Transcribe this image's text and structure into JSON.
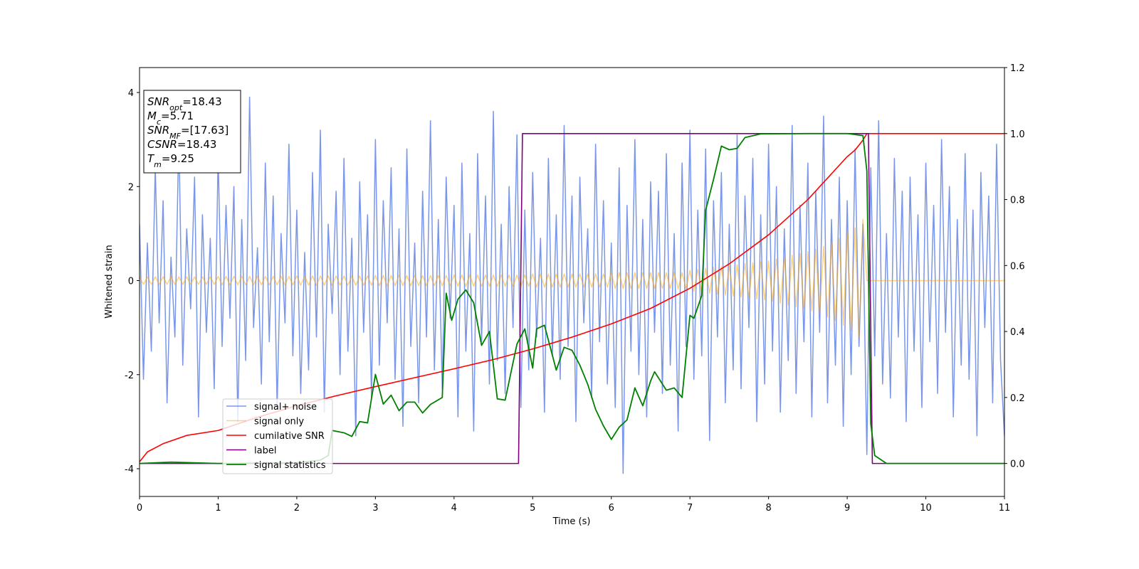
{
  "chart_data": {
    "type": "line",
    "xlabel": "Time (s)",
    "ylabel": "Whitened strain",
    "xlim": [
      0,
      11
    ],
    "ylim": [
      -4.59,
      4.53
    ],
    "y2lim": [
      -0.1,
      1.2
    ],
    "xticks": [
      0,
      1,
      2,
      3,
      4,
      5,
      6,
      7,
      8,
      9,
      10,
      11
    ],
    "yticks": [
      -4,
      -2,
      0,
      2,
      4
    ],
    "y2ticks": [
      {
        "value": 0,
        "label": "0.0"
      },
      0.2,
      0.4,
      0.6,
      0.8,
      {
        "value": 1,
        "label": "1.0"
      },
      1.2
    ],
    "legend": "lower left",
    "annotations": [
      {
        "symbol": "SNR",
        "subscript": "opt",
        "text": "=18.43"
      },
      {
        "symbol": "M",
        "subscript": "c",
        "text": "=5.71"
      },
      {
        "symbol": "SNR",
        "subscript": "MF",
        "text": "=[17.63]"
      },
      {
        "symbol": "CSNR",
        "text": "=18.43"
      },
      {
        "symbol": "T",
        "subscript": "m",
        "text": "=9.25"
      }
    ],
    "x": [
      0,
      0.05,
      0.1,
      0.15,
      0.2,
      0.25,
      0.3,
      0.35,
      0.4,
      0.45,
      0.5,
      0.55,
      0.6,
      0.65,
      0.7,
      0.75,
      0.8,
      0.85,
      0.9,
      0.95,
      1,
      1.05,
      1.1,
      1.15,
      1.2,
      1.25,
      1.3,
      1.35,
      1.4,
      1.45,
      1.5,
      1.55,
      1.6,
      1.65,
      1.7,
      1.75,
      1.8,
      1.85,
      1.9,
      1.95,
      2,
      2.05,
      2.1,
      2.15,
      2.2,
      2.25,
      2.3,
      2.35,
      2.4,
      2.45,
      2.5,
      2.55,
      2.6,
      2.65,
      2.7,
      2.75,
      2.8,
      2.85,
      2.9,
      2.95,
      3,
      3.05,
      3.1,
      3.15,
      3.2,
      3.25,
      3.3,
      3.35,
      3.4,
      3.45,
      3.5,
      3.55,
      3.6,
      3.65,
      3.7,
      3.75,
      3.8,
      3.85,
      3.9,
      3.95,
      4,
      4.05,
      4.1,
      4.15,
      4.2,
      4.25,
      4.3,
      4.35,
      4.4,
      4.45,
      4.5,
      4.55,
      4.6,
      4.65,
      4.7,
      4.75,
      4.8,
      4.85,
      4.9,
      4.95,
      5,
      5.05,
      5.1,
      5.15,
      5.2,
      5.25,
      5.3,
      5.35,
      5.4,
      5.45,
      5.5,
      5.55,
      5.6,
      5.65,
      5.7,
      5.75,
      5.8,
      5.85,
      5.9,
      5.95,
      6,
      6.05,
      6.1,
      6.15,
      6.2,
      6.25,
      6.3,
      6.35,
      6.4,
      6.45,
      6.5,
      6.55,
      6.6,
      6.65,
      6.7,
      6.75,
      6.8,
      6.85,
      6.9,
      6.95,
      7,
      7.05,
      7.1,
      7.15,
      7.2,
      7.25,
      7.3,
      7.35,
      7.4,
      7.45,
      7.5,
      7.55,
      7.6,
      7.65,
      7.7,
      7.75,
      7.8,
      7.85,
      7.9,
      7.95,
      8,
      8.05,
      8.1,
      8.15,
      8.2,
      8.25,
      8.3,
      8.35,
      8.4,
      8.45,
      8.5,
      8.55,
      8.6,
      8.65,
      8.7,
      8.75,
      8.8,
      8.85,
      8.9,
      8.95,
      9,
      9.05,
      9.1,
      9.15,
      9.2,
      9.25,
      9.3,
      9.35,
      9.4,
      9.45,
      9.5,
      9.55,
      9.6,
      9.65,
      9.7,
      9.75,
      9.8,
      9.85,
      9.9,
      9.95,
      10,
      10.05,
      10.1,
      10.15,
      10.2,
      10.25,
      10.3,
      10.35,
      10.4,
      10.45,
      10.5,
      10.55,
      10.6,
      10.65,
      10.7,
      10.75,
      10.8,
      10.85,
      10.9,
      10.95,
      11
    ],
    "series": [
      {
        "name": "signal+ noise",
        "color": "#4169e1",
        "opacity": 0.7,
        "width": 1.5,
        "values": [
          1.2,
          -2.1,
          0.8,
          -1.5,
          2.4,
          -0.9,
          1.7,
          -2.6,
          0.5,
          -1.2,
          3.1,
          -1.8,
          1.1,
          -0.6,
          2.2,
          -2.9,
          1.4,
          -1.1,
          0.9,
          -2.3,
          2.7,
          -1.4,
          1.6,
          -0.8,
          2.0,
          -3.0,
          1.3,
          -1.7,
          3.9,
          -1.0,
          0.7,
          -2.2,
          2.5,
          -1.3,
          1.8,
          -2.7,
          1.0,
          -0.9,
          2.9,
          -1.6,
          1.5,
          -2.4,
          0.6,
          -1.9,
          2.3,
          -1.2,
          3.2,
          -2.8,
          1.2,
          -0.7,
          1.9,
          -2.0,
          2.6,
          -1.5,
          0.9,
          -3.3,
          2.1,
          -1.1,
          1.4,
          -2.5,
          3.0,
          -1.8,
          1.7,
          -0.9,
          2.4,
          -2.1,
          1.1,
          -3.1,
          2.8,
          -1.4,
          0.8,
          -2.6,
          1.9,
          -1.2,
          3.4,
          -1.9,
          1.3,
          -2.3,
          2.2,
          -0.8,
          1.6,
          -2.9,
          2.5,
          -1.5,
          1.0,
          -3.2,
          2.7,
          -1.3,
          1.8,
          -2.2,
          3.6,
          -1.7,
          1.2,
          -2.4,
          2.0,
          -1.0,
          3.1,
          -2.7,
          1.5,
          -1.9,
          2.3,
          -1.2,
          0.9,
          -2.8,
          2.6,
          -1.6,
          1.4,
          -2.1,
          3.3,
          -1.4,
          1.8,
          -3.0,
          2.2,
          -0.9,
          1.1,
          -2.5,
          2.9,
          -1.3,
          1.7,
          -2.2,
          0.8,
          -2.7,
          2.4,
          -4.1,
          1.6,
          -1.5,
          3.0,
          -2.0,
          1.3,
          -2.9,
          2.1,
          -1.1,
          1.9,
          -2.4,
          2.7,
          -1.8,
          1.0,
          -3.2,
          2.5,
          -1.4,
          3.2,
          -2.1,
          1.5,
          -1.6,
          2.8,
          -3.4,
          1.7,
          -1.2,
          2.3,
          -2.6,
          1.2,
          -1.9,
          3.1,
          -2.3,
          1.8,
          -1.0,
          2.6,
          -3.0,
          1.4,
          -2.2,
          2.9,
          -1.5,
          2.0,
          -2.8,
          1.1,
          -1.7,
          3.3,
          -2.4,
          1.6,
          -1.3,
          2.5,
          -2.9,
          1.9,
          -1.1,
          3.5,
          -2.6,
          1.3,
          -1.8,
          2.2,
          -3.1,
          1.7,
          -2.0,
          2.8,
          -1.4,
          1.2,
          -3.7,
          2.4,
          -1.6,
          3.4,
          -2.2,
          1.0,
          -2.5,
          2.6,
          -1.2,
          1.9,
          -3.0,
          2.2,
          -1.5,
          1.4,
          -2.7,
          2.5,
          -1.3,
          1.6,
          -2.4,
          3.0,
          -1.1,
          2.0,
          -2.9,
          1.3,
          -1.8,
          2.7,
          -2.1,
          1.5,
          -3.3,
          2.3,
          -1.0,
          1.8,
          -2.6,
          2.9,
          -1.7,
          -3.3
        ]
      },
      {
        "name": "signal only",
        "color": "#ffa500",
        "opacity": 0.5,
        "width": 1.5,
        "values": [
          0.08,
          -0.08,
          0.08,
          -0.08,
          0.08,
          -0.08,
          0.08,
          -0.08,
          0.08,
          -0.08,
          0.08,
          -0.08,
          0.08,
          -0.08,
          0.08,
          -0.08,
          0.08,
          -0.08,
          0.08,
          -0.08,
          0.09,
          -0.09,
          0.09,
          -0.09,
          0.09,
          -0.09,
          0.09,
          -0.09,
          0.09,
          -0.09,
          0.09,
          -0.09,
          0.09,
          -0.09,
          0.09,
          -0.09,
          0.09,
          -0.09,
          0.09,
          -0.09,
          0.1,
          -0.1,
          0.1,
          -0.1,
          0.1,
          -0.1,
          0.1,
          -0.1,
          0.1,
          -0.1,
          0.1,
          -0.1,
          0.1,
          -0.1,
          0.1,
          -0.1,
          0.1,
          -0.1,
          0.1,
          -0.1,
          0.11,
          -0.11,
          0.11,
          -0.11,
          0.11,
          -0.11,
          0.11,
          -0.11,
          0.11,
          -0.11,
          0.11,
          -0.11,
          0.11,
          -0.11,
          0.11,
          -0.11,
          0.11,
          -0.11,
          0.11,
          -0.11,
          0.12,
          -0.12,
          0.12,
          -0.12,
          0.12,
          -0.12,
          0.12,
          -0.12,
          0.12,
          -0.12,
          0.12,
          -0.12,
          0.12,
          -0.12,
          0.12,
          -0.12,
          0.12,
          -0.12,
          0.12,
          -0.12,
          0.14,
          -0.14,
          0.14,
          -0.14,
          0.14,
          -0.14,
          0.14,
          -0.14,
          0.14,
          -0.14,
          0.14,
          -0.14,
          0.14,
          -0.14,
          0.14,
          -0.14,
          0.14,
          -0.14,
          0.14,
          -0.14,
          0.17,
          -0.17,
          0.17,
          -0.17,
          0.17,
          -0.17,
          0.17,
          -0.17,
          0.17,
          -0.17,
          0.17,
          -0.17,
          0.17,
          -0.17,
          0.17,
          -0.17,
          0.17,
          -0.17,
          0.17,
          -0.17,
          0.22,
          -0.23,
          0.24,
          -0.25,
          0.26,
          -0.27,
          0.28,
          -0.29,
          0.3,
          -0.31,
          0.32,
          -0.33,
          0.34,
          -0.35,
          0.36,
          -0.37,
          0.38,
          -0.39,
          0.4,
          -0.41,
          0.42,
          -0.44,
          0.46,
          -0.48,
          0.5,
          -0.52,
          0.54,
          -0.56,
          0.58,
          -0.6,
          0.62,
          -0.64,
          0.67,
          -0.7,
          0.73,
          -0.77,
          0.81,
          -0.85,
          0.9,
          -0.95,
          1.0,
          -1.06,
          1.12,
          -1.2,
          1.3,
          0,
          0,
          0,
          0,
          0,
          0,
          0,
          0,
          0,
          0,
          0,
          0,
          0,
          0,
          0,
          0,
          0,
          0,
          0,
          0,
          0,
          0,
          0,
          0,
          0,
          0,
          0,
          0,
          0,
          0,
          0,
          0,
          0,
          0,
          0,
          0
        ]
      },
      {
        "name": "cumilative SNR",
        "color": "#ff0000",
        "axis": "y2",
        "width": 1.6,
        "x": [
          0,
          0.1,
          0.3,
          0.6,
          1,
          1.5,
          2,
          2.5,
          3,
          3.5,
          4,
          4.5,
          5,
          5.5,
          6,
          6.5,
          7,
          7.5,
          8,
          8.5,
          9,
          9.1,
          9.2,
          9.25,
          11
        ],
        "values": [
          0.005,
          0.035,
          0.06,
          0.085,
          0.1,
          0.14,
          0.175,
          0.205,
          0.233,
          0.26,
          0.287,
          0.315,
          0.347,
          0.383,
          0.423,
          0.47,
          0.531,
          0.605,
          0.693,
          0.8,
          0.93,
          0.95,
          0.98,
          1.0,
          1.0
        ]
      },
      {
        "name": "label",
        "color": "#800080",
        "axis": "y2",
        "width": 1.6,
        "x": [
          0,
          4.82,
          4.87,
          9.27,
          9.32,
          11
        ],
        "values": [
          0,
          0,
          1,
          1,
          0,
          0
        ]
      },
      {
        "name": "signal statistics",
        "color": "#008000",
        "axis": "y2",
        "width": 1.8,
        "x": [
          0,
          0.4,
          1,
          2,
          2.3,
          2.4,
          2.45,
          2.6,
          2.7,
          2.8,
          2.9,
          3.0,
          3.1,
          3.2,
          3.3,
          3.4,
          3.5,
          3.6,
          3.7,
          3.85,
          3.9,
          3.97,
          4.05,
          4.15,
          4.25,
          4.35,
          4.45,
          4.55,
          4.65,
          4.8,
          4.9,
          5.0,
          5.05,
          5.15,
          5.3,
          5.4,
          5.5,
          5.6,
          5.7,
          5.8,
          5.9,
          6.0,
          6.1,
          6.2,
          6.3,
          6.4,
          6.5,
          6.55,
          6.7,
          6.8,
          6.9,
          7.0,
          7.05,
          7.15,
          7.2,
          7.3,
          7.4,
          7.5,
          7.6,
          7.7,
          7.9,
          8.5,
          9.0,
          9.2,
          9.25,
          9.3,
          9.35,
          9.5,
          11
        ],
        "values": [
          0,
          0.004,
          0,
          0.002,
          0.01,
          0.024,
          0.1,
          0.093,
          0.082,
          0.127,
          0.123,
          0.27,
          0.18,
          0.207,
          0.16,
          0.186,
          0.186,
          0.153,
          0.179,
          0.2,
          0.516,
          0.434,
          0.498,
          0.526,
          0.487,
          0.358,
          0.4,
          0.196,
          0.192,
          0.362,
          0.408,
          0.289,
          0.408,
          0.419,
          0.283,
          0.352,
          0.343,
          0.298,
          0.24,
          0.164,
          0.114,
          0.073,
          0.11,
          0.132,
          0.229,
          0.175,
          0.25,
          0.278,
          0.222,
          0.229,
          0.2,
          0.449,
          0.44,
          0.509,
          0.768,
          0.861,
          0.962,
          0.951,
          0.955,
          0.988,
          0.999,
          1.0,
          1.0,
          0.994,
          0.887,
          0.12,
          0.024,
          0,
          0
        ]
      }
    ]
  }
}
